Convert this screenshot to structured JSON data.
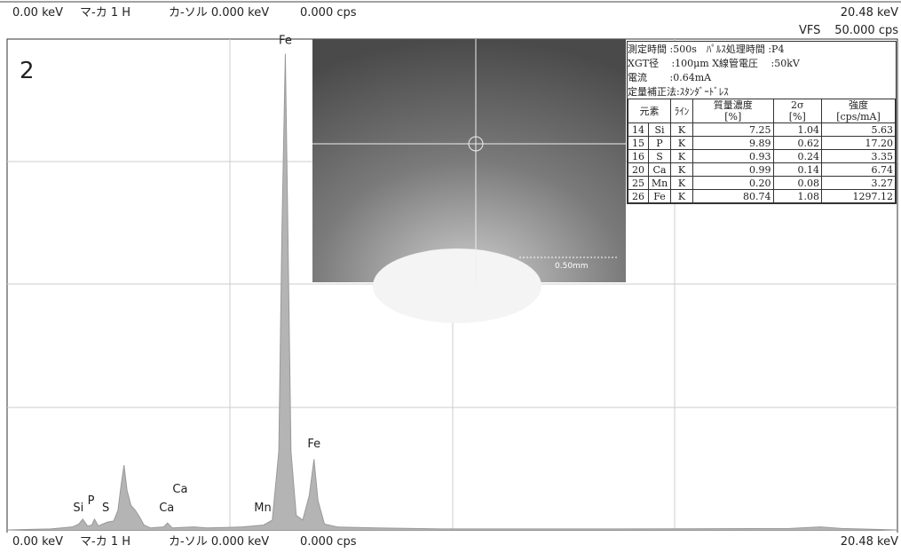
{
  "top_bar": {
    "left": [
      "0.00 keV",
      "マ-カ 1 H",
      "カ-ソル 0.000 keV",
      "0.000 cps"
    ],
    "right": "20.48 keV",
    "vfs_label": "VFS",
    "vfs_value": "50.000 cps"
  },
  "panel_number": "2",
  "chart_data": {
    "type": "area",
    "color": "#b4b4b4",
    "x": [
      0,
      1.0,
      1.5,
      1.65,
      1.74,
      1.85,
      1.95,
      2.01,
      2.1,
      2.2,
      2.31,
      2.45,
      2.55,
      2.62,
      2.69,
      2.76,
      2.85,
      2.95,
      3.05,
      3.15,
      3.3,
      3.6,
      3.69,
      3.8,
      4.0,
      4.3,
      4.6,
      5.0,
      5.41,
      5.9,
      6.1,
      6.25,
      6.32,
      6.4,
      6.46,
      6.53,
      6.65,
      6.8,
      6.95,
      7.06,
      7.15,
      7.3,
      7.6,
      8.5,
      10,
      12,
      14,
      18,
      18.7,
      19.2,
      20.48
    ],
    "values": [
      0,
      0.1,
      0.3,
      0.6,
      1.1,
      0.4,
      0.5,
      1.1,
      0.4,
      0.6,
      0.8,
      0.9,
      2.0,
      4.5,
      6.6,
      4.0,
      2.5,
      2.0,
      1.3,
      0.5,
      0.2,
      0.3,
      0.7,
      0.2,
      0.25,
      0.3,
      0.2,
      0.25,
      0.3,
      0.5,
      1.0,
      8,
      30,
      48.5,
      30,
      8,
      1.5,
      1.0,
      3.5,
      7.2,
      3.0,
      0.6,
      0.3,
      0.2,
      0.1,
      0.1,
      0.1,
      0.15,
      0.3,
      0.15,
      0
    ],
    "xlim": [
      0,
      20.48
    ],
    "ylim": [
      0,
      50
    ],
    "xticks": [
      {
        "value": 0,
        "label": "0.00 keV"
      },
      {
        "value": 20.48,
        "label": "20.48 keV"
      }
    ],
    "annotations": [
      {
        "text": "Fe",
        "x": 6.4,
        "y": 49.5
      },
      {
        "text": "Fe",
        "x": 7.06,
        "y": 8.4
      },
      {
        "text": "Si",
        "x": 1.64,
        "y": 1.9
      },
      {
        "text": "P",
        "x": 1.93,
        "y": 2.6
      },
      {
        "text": "S",
        "x": 2.27,
        "y": 1.9
      },
      {
        "text": "Ca",
        "x": 3.67,
        "y": 1.9
      },
      {
        "text": "Ca",
        "x": 3.98,
        "y": 3.8
      },
      {
        "text": "Mn",
        "x": 5.88,
        "y": 1.9
      }
    ]
  },
  "bottom_bar": {
    "left": [
      "0.00 keV",
      "マ-カ 1 H",
      "カ-ソル 0.000 keV",
      "0.000 cps"
    ]
  },
  "inset_image": {
    "scale_label": "0.50mm"
  },
  "results": {
    "info": [
      "測定時間 :500s　ﾊﾟﾙｽ処理時間 :P4",
      "XGT径 　:100μm X線管電圧 　:50kV",
      "電流 　　:0.64mA",
      "定量補正法:ｽﾀﾝﾀﾞｰﾄﾞﾚｽ"
    ],
    "table": {
      "header": [
        "元素",
        "ﾗｲﾝ",
        "質量濃度",
        "2σ",
        "強度"
      ],
      "units": {
        "2": "[%]",
        "3": "[%]",
        "4": "[cps/mA]"
      },
      "rows": [
        [
          "14",
          "Si",
          "K",
          "7.25",
          "1.04",
          "5.63"
        ],
        [
          "15",
          "P",
          "K",
          "9.89",
          "0.62",
          "17.20"
        ],
        [
          "16",
          "S",
          "K",
          "0.93",
          "0.24",
          "3.35"
        ],
        [
          "20",
          "Ca",
          "K",
          "0.99",
          "0.14",
          "6.74"
        ],
        [
          "25",
          "Mn",
          "K",
          "0.20",
          "0.08",
          "3.27"
        ],
        [
          "26",
          "Fe",
          "K",
          "80.74",
          "1.08",
          "1297.12"
        ]
      ]
    }
  }
}
